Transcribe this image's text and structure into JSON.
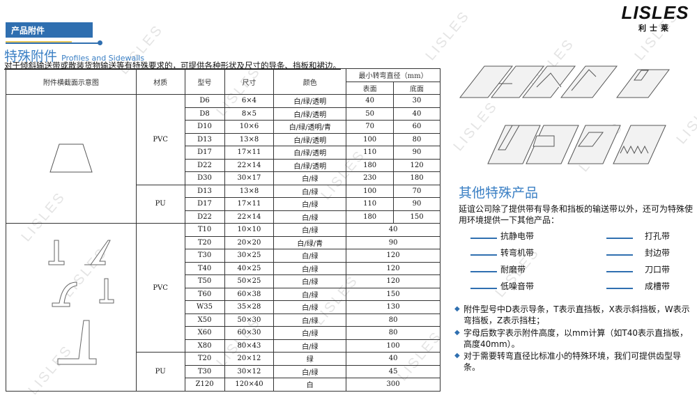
{
  "header": {
    "section_tab": "产品附件",
    "title": "特殊附件",
    "title_en": "Profiles and Sidewalls",
    "intro": "对于倾斜输送带或散装货物输送等有特殊要求的，可提供各种形状及尺寸的导条、挡板和裙边。"
  },
  "logo": {
    "brand": "LISLES",
    "brand_cn": "利士莱"
  },
  "watermark": "LISLES",
  "table": {
    "headers": {
      "diagram": "附件横截面示意图",
      "material": "材质",
      "model": "型号",
      "size": "尺寸",
      "color": "颜色",
      "min_diameter": "最小转弯直径（mm）",
      "surface": "表面",
      "bottom": "底面"
    },
    "groups": [
      {
        "material": "PVC",
        "rows": [
          [
            "D6",
            "6×4",
            "白/绿/透明",
            "40",
            "30"
          ],
          [
            "D8",
            "8×5",
            "白/绿/透明",
            "50",
            "40"
          ],
          [
            "D10",
            "10×6",
            "白/绿/透明/青",
            "70",
            "60"
          ],
          [
            "D13",
            "13×8",
            "白/绿/透明",
            "100",
            "80"
          ],
          [
            "D17",
            "17×11",
            "白/绿/透明",
            "110",
            "90"
          ],
          [
            "D22",
            "22×14",
            "白/绿/透明",
            "180",
            "120"
          ],
          [
            "D30",
            "30×17",
            "白/绿",
            "230",
            "180"
          ]
        ]
      },
      {
        "material": "PU",
        "rows": [
          [
            "D13",
            "13×8",
            "白/绿",
            "100",
            "70"
          ],
          [
            "D17",
            "17×11",
            "白/绿",
            "110",
            "90"
          ],
          [
            "D22",
            "22×14",
            "白/绿",
            "180",
            "150"
          ]
        ]
      },
      {
        "material": "PVC",
        "rows": [
          [
            "T10",
            "10×10",
            "白/绿",
            "40"
          ],
          [
            "T20",
            "20×20",
            "白/绿/青",
            "90"
          ],
          [
            "T30",
            "30×25",
            "白/绿",
            "120"
          ],
          [
            "T40",
            "40×25",
            "白/绿",
            "120"
          ],
          [
            "T50",
            "50×25",
            "白/绿",
            "120"
          ],
          [
            "T60",
            "60×38",
            "白/绿",
            "150"
          ],
          [
            "W35",
            "35×28",
            "白/绿",
            "130"
          ],
          [
            "X50",
            "50×30",
            "白/绿",
            "80"
          ],
          [
            "X60",
            "60×30",
            "白/绿",
            "80"
          ],
          [
            "X80",
            "80×43",
            "白/绿",
            "100"
          ]
        ]
      },
      {
        "material": "PU",
        "rows": [
          [
            "T20",
            "20×12",
            "绿",
            "40"
          ],
          [
            "T30",
            "30×12",
            "白/绿",
            "45"
          ],
          [
            "Z120",
            "120×40",
            "白",
            "300"
          ]
        ]
      }
    ]
  },
  "other": {
    "title": "其他特殊产品",
    "desc": "延谊公司除了提供带有导条和挡板的输送带以外，还可为特殊使用环境提供一下其他产品：",
    "products_left": [
      "抗静电带",
      "转弯机带",
      "耐磨带",
      "低噪音带"
    ],
    "products_right": [
      "打孔带",
      "封边带",
      "刀口带",
      "成槽带"
    ],
    "notes": [
      "附件型号中D表示导条，T表示直挡板，X表示斜挡板，W表示弯挡板，Z表示挡柱；",
      "字母后数字表示附件高度，以mm计算（如T40表示直挡板，高度40mm）。",
      "对于需要转弯直径比标准小的特殊环境，我们可提供齿型导条。"
    ]
  },
  "colors": {
    "accent": "#2f6fb0",
    "title": "#3a7fc4"
  }
}
